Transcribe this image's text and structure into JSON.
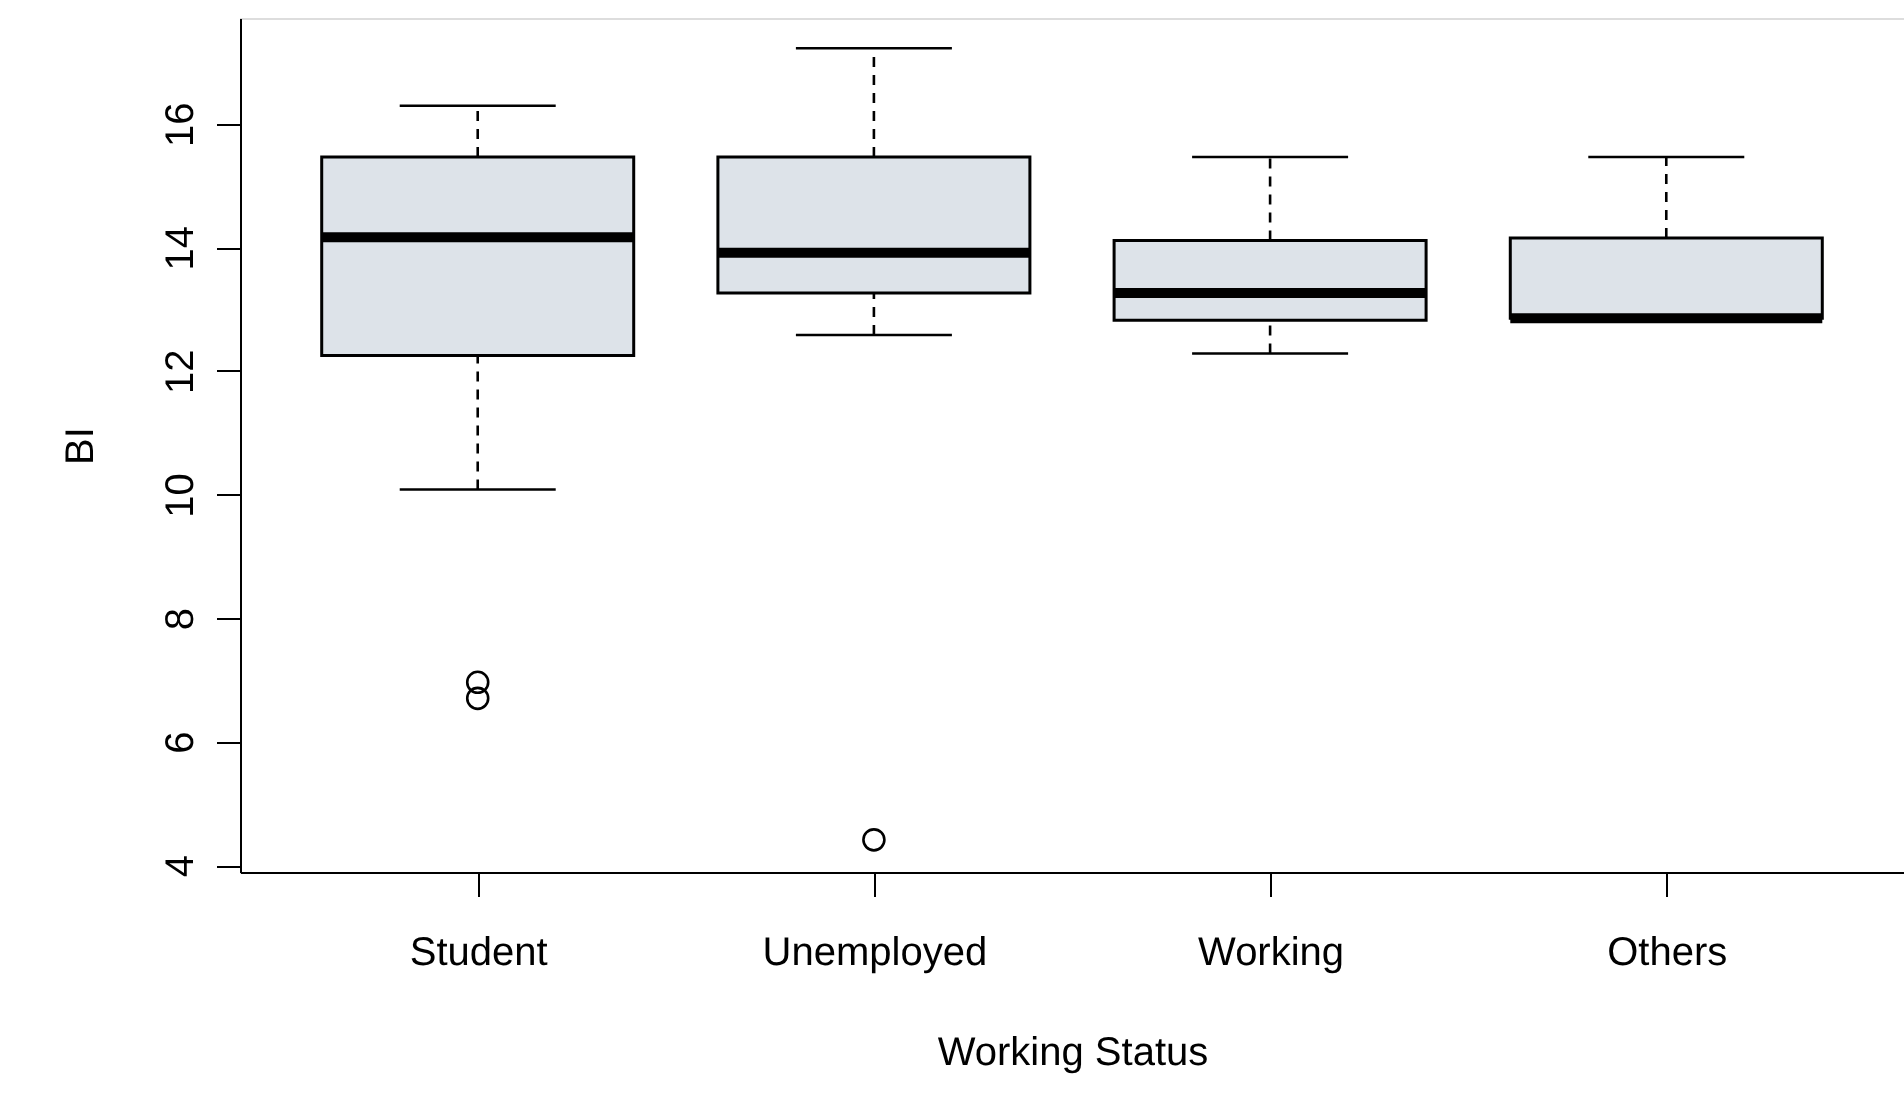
{
  "chart_data": {
    "type": "box",
    "xlabel": "Working Status",
    "ylabel": "BI",
    "categories": [
      "Student",
      "Unemployed",
      "Working",
      "Others"
    ],
    "series": [
      {
        "color": "#dde3e9",
        "boxes": [
          {
            "low": 10.08,
            "q1": 12.25,
            "median": 14.16,
            "q3": 15.46,
            "high": 16.29,
            "outliers": [
              6.96,
              6.7
            ]
          },
          {
            "low": 12.58,
            "q1": 13.26,
            "median": 13.91,
            "q3": 15.46,
            "high": 17.22,
            "outliers": [
              4.41
            ]
          },
          {
            "low": 12.28,
            "q1": 12.82,
            "median": 13.26,
            "q3": 14.11,
            "high": 15.46
          },
          {
            "low": 12.85,
            "q1": 12.85,
            "median": 12.85,
            "q3": 14.15,
            "high": 15.46
          }
        ]
      }
    ],
    "ylim": [
      3.89,
      17.71
    ],
    "yticks": [
      4,
      6,
      8,
      10,
      12,
      14,
      16
    ],
    "grid": false
  }
}
